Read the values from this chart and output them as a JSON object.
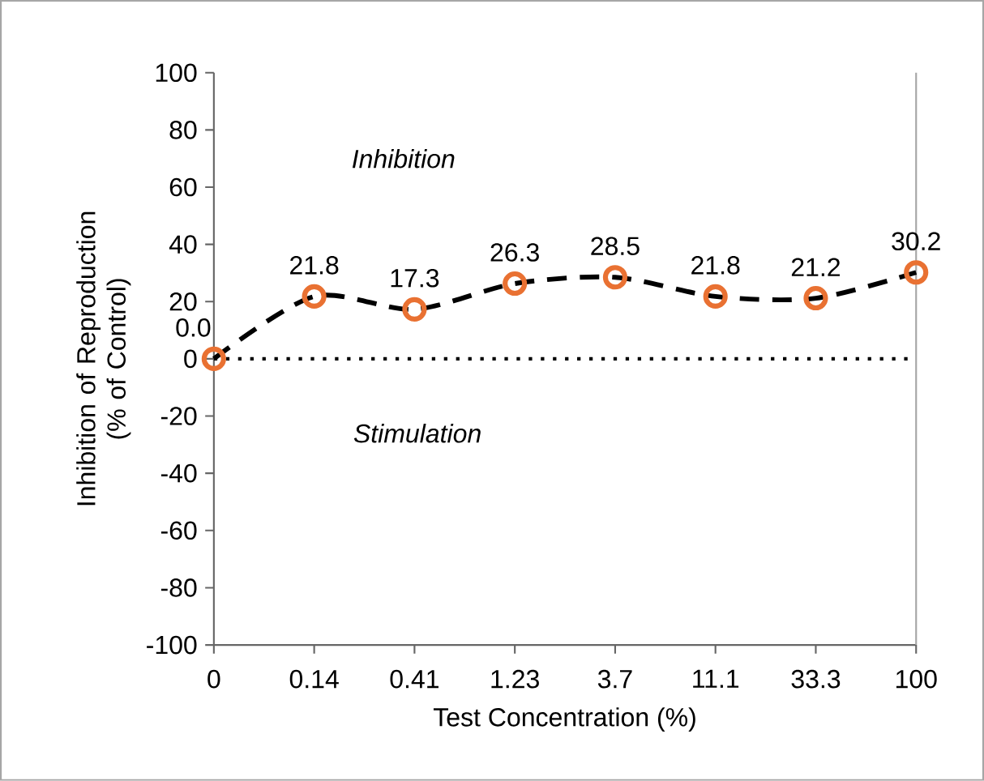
{
  "chart_data": {
    "type": "line",
    "xlabel": "Test Concentration (%)",
    "ylabel": "Inhibition of Reproduction (% of Control)",
    "categories": [
      "0",
      "0.14",
      "0.41",
      "1.23",
      "3.7",
      "11.1",
      "33.3",
      "100"
    ],
    "values": [
      0,
      21.8,
      17.3,
      26.3,
      28.5,
      21.8,
      21.2,
      30.2
    ],
    "value_labels": [
      "0.0",
      "21.8",
      "17.3",
      "26.3",
      "28.5",
      "21.8",
      "21.2",
      "30.2"
    ],
    "color": "#e97132",
    "marker": "circle",
    "line_style": "dashed",
    "ylim": [
      -100,
      100
    ],
    "yticks": [
      -100,
      -80,
      -60,
      -40,
      -20,
      0,
      20,
      40,
      60,
      80,
      100
    ],
    "ref_lines": [
      {
        "axis": "y",
        "value": 0,
        "line_style": "dotted",
        "color": "#000000"
      }
    ],
    "annotations": [
      "Inhibition",
      "Stimulation"
    ]
  }
}
